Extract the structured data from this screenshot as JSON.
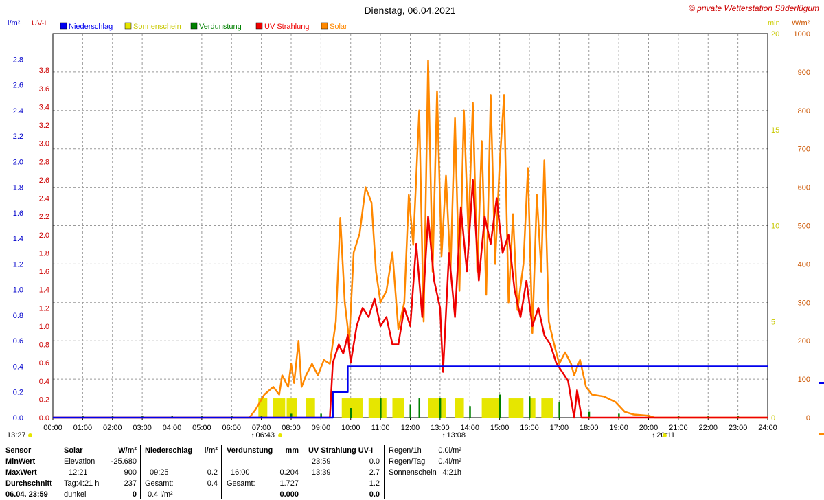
{
  "header": {
    "title": "Dienstag, 06.04.2021",
    "copyright": "© private Wetterstation Süderlügum",
    "unit_rain": "l/m²",
    "unit_uv": "UV-I",
    "unit_min": "min",
    "unit_wm2": "W/m²"
  },
  "legend": [
    {
      "label": "Niederschlag",
      "color": "#0000ee"
    },
    {
      "label": "Sonnenschein",
      "color": "#e6e600"
    },
    {
      "label": "Verdunstung",
      "color": "#008000"
    },
    {
      "label": "UV Strahlung",
      "color": "#ee0000"
    },
    {
      "label": "Solar",
      "color": "#ff8800"
    }
  ],
  "chart_data": {
    "type": "line",
    "x_ticks": [
      "00:00",
      "01:00",
      "02:00",
      "03:00",
      "04:00",
      "05:00",
      "06:00",
      "07:00",
      "08:00",
      "09:00",
      "10:00",
      "11:00",
      "12:00",
      "13:00",
      "14:00",
      "15:00",
      "16:00",
      "17:00",
      "18:00",
      "19:00",
      "20:00",
      "21:00",
      "22:00",
      "23:00",
      "24:00"
    ],
    "xlim": [
      0,
      24
    ],
    "y_rain_ticks": [
      "0.0",
      "0.2",
      "0.4",
      "0.6",
      "0.8",
      "1.0",
      "1.2",
      "1.4",
      "1.6",
      "1.8",
      "2.0",
      "2.2",
      "2.4",
      "2.6",
      "2.8"
    ],
    "y_uv_ticks": [
      "0.0",
      "0.2",
      "0.4",
      "0.6",
      "0.8",
      "1.0",
      "1.2",
      "1.4",
      "1.6",
      "1.8",
      "2.0",
      "2.2",
      "2.4",
      "2.6",
      "2.8",
      "3.0",
      "3.2",
      "3.4",
      "3.6",
      "3.8"
    ],
    "y_min_ticks": [
      "0",
      "5",
      "10",
      "15",
      "20"
    ],
    "y_wm2_ticks": [
      "0",
      "100",
      "200",
      "300",
      "400",
      "500",
      "600",
      "700",
      "800",
      "900",
      "1000"
    ],
    "grid": true,
    "markers": [
      {
        "label": "13:27",
        "pos": "left"
      },
      {
        "label": "06:43",
        "pos": "sunrise"
      },
      {
        "label": "13:08",
        "pos": "noon"
      },
      {
        "label": "20:11",
        "pos": "sunset"
      }
    ],
    "series": [
      {
        "name": "Niederschlag",
        "color": "#0000ee",
        "axis": "rain",
        "points": [
          [
            0,
            0
          ],
          [
            9.4,
            0
          ],
          [
            9.4,
            0.2
          ],
          [
            9.9,
            0.2
          ],
          [
            9.9,
            0.4
          ],
          [
            24,
            0.4
          ]
        ]
      },
      {
        "name": "Solar",
        "color": "#ff8800",
        "axis": "wm2",
        "points": [
          [
            0,
            0
          ],
          [
            6.6,
            0
          ],
          [
            6.8,
            20
          ],
          [
            7.1,
            60
          ],
          [
            7.4,
            80
          ],
          [
            7.6,
            60
          ],
          [
            7.7,
            110
          ],
          [
            7.9,
            80
          ],
          [
            8.0,
            140
          ],
          [
            8.1,
            90
          ],
          [
            8.25,
            200
          ],
          [
            8.35,
            80
          ],
          [
            8.5,
            110
          ],
          [
            8.7,
            140
          ],
          [
            8.9,
            110
          ],
          [
            9.1,
            150
          ],
          [
            9.3,
            140
          ],
          [
            9.5,
            250
          ],
          [
            9.65,
            520
          ],
          [
            9.8,
            300
          ],
          [
            9.95,
            200
          ],
          [
            10.1,
            430
          ],
          [
            10.3,
            480
          ],
          [
            10.5,
            600
          ],
          [
            10.7,
            560
          ],
          [
            10.85,
            380
          ],
          [
            11.0,
            300
          ],
          [
            11.2,
            330
          ],
          [
            11.4,
            430
          ],
          [
            11.6,
            230
          ],
          [
            11.8,
            300
          ],
          [
            11.95,
            580
          ],
          [
            12.1,
            450
          ],
          [
            12.3,
            800
          ],
          [
            12.45,
            250
          ],
          [
            12.6,
            930
          ],
          [
            12.75,
            380
          ],
          [
            12.9,
            850
          ],
          [
            13.05,
            420
          ],
          [
            13.2,
            630
          ],
          [
            13.35,
            380
          ],
          [
            13.5,
            780
          ],
          [
            13.65,
            330
          ],
          [
            13.8,
            800
          ],
          [
            13.95,
            480
          ],
          [
            14.1,
            820
          ],
          [
            14.25,
            380
          ],
          [
            14.4,
            720
          ],
          [
            14.55,
            320
          ],
          [
            14.7,
            840
          ],
          [
            14.85,
            400
          ],
          [
            15.0,
            660
          ],
          [
            15.15,
            840
          ],
          [
            15.3,
            300
          ],
          [
            15.45,
            530
          ],
          [
            15.6,
            280
          ],
          [
            15.8,
            400
          ],
          [
            15.95,
            650
          ],
          [
            16.1,
            220
          ],
          [
            16.25,
            580
          ],
          [
            16.4,
            380
          ],
          [
            16.5,
            670
          ],
          [
            16.65,
            250
          ],
          [
            16.8,
            200
          ],
          [
            17.0,
            140
          ],
          [
            17.2,
            170
          ],
          [
            17.4,
            140
          ],
          [
            17.5,
            110
          ],
          [
            17.7,
            150
          ],
          [
            17.9,
            80
          ],
          [
            18.1,
            60
          ],
          [
            18.5,
            55
          ],
          [
            18.9,
            40
          ],
          [
            19.2,
            15
          ],
          [
            19.5,
            8
          ],
          [
            20.0,
            5
          ],
          [
            20.2,
            0
          ],
          [
            24,
            0
          ]
        ]
      },
      {
        "name": "UV Strahlung",
        "color": "#ee0000",
        "axis": "uv",
        "points": [
          [
            0,
            0
          ],
          [
            9.3,
            0
          ],
          [
            9.4,
            0.6
          ],
          [
            9.6,
            0.8
          ],
          [
            9.75,
            0.7
          ],
          [
            9.9,
            0.9
          ],
          [
            10.0,
            0.6
          ],
          [
            10.2,
            1.0
          ],
          [
            10.4,
            1.2
          ],
          [
            10.6,
            1.1
          ],
          [
            10.8,
            1.3
          ],
          [
            11.0,
            1.0
          ],
          [
            11.2,
            1.1
          ],
          [
            11.4,
            0.8
          ],
          [
            11.6,
            0.8
          ],
          [
            11.8,
            1.2
          ],
          [
            12.0,
            1.0
          ],
          [
            12.2,
            1.9
          ],
          [
            12.4,
            1.1
          ],
          [
            12.6,
            2.2
          ],
          [
            12.8,
            1.5
          ],
          [
            13.0,
            1.2
          ],
          [
            13.1,
            0.5
          ],
          [
            13.3,
            1.8
          ],
          [
            13.5,
            1.1
          ],
          [
            13.7,
            2.3
          ],
          [
            13.9,
            1.6
          ],
          [
            14.1,
            2.6
          ],
          [
            14.3,
            1.5
          ],
          [
            14.5,
            2.2
          ],
          [
            14.7,
            1.9
          ],
          [
            14.9,
            2.4
          ],
          [
            15.1,
            1.8
          ],
          [
            15.3,
            2.0
          ],
          [
            15.5,
            1.4
          ],
          [
            15.7,
            1.1
          ],
          [
            15.9,
            1.5
          ],
          [
            16.1,
            1.0
          ],
          [
            16.3,
            1.2
          ],
          [
            16.5,
            0.9
          ],
          [
            16.7,
            0.8
          ],
          [
            16.9,
            0.6
          ],
          [
            17.1,
            0.5
          ],
          [
            17.3,
            0.4
          ],
          [
            17.5,
            0.0
          ],
          [
            17.6,
            0.3
          ],
          [
            17.75,
            0.0
          ],
          [
            24,
            0
          ]
        ]
      },
      {
        "name": "Sonnenschein",
        "color": "#e6e600",
        "axis": "min",
        "bars": [
          [
            6.9,
            7.2
          ],
          [
            7.4,
            7.8
          ],
          [
            7.85,
            8.2
          ],
          [
            8.5,
            8.8
          ],
          [
            9.7,
            10.4
          ],
          [
            10.6,
            11.2
          ],
          [
            11.4,
            11.8
          ],
          [
            12.6,
            13.2
          ],
          [
            13.5,
            13.8
          ],
          [
            14.4,
            15.0
          ],
          [
            15.3,
            15.8
          ],
          [
            16.0,
            16.2
          ],
          [
            16.4,
            16.8
          ]
        ],
        "bar_value": 1
      },
      {
        "name": "Verdunstung",
        "color": "#008000",
        "axis": "min",
        "spikes": [
          [
            1,
            0.1
          ],
          [
            2,
            0.1
          ],
          [
            3,
            0.1
          ],
          [
            4,
            0.1
          ],
          [
            5,
            0.1
          ],
          [
            6,
            0.1
          ],
          [
            7,
            0.1
          ],
          [
            8,
            0.2
          ],
          [
            9,
            0.2
          ],
          [
            10,
            0.5
          ],
          [
            11,
            1.0
          ],
          [
            12,
            0.7
          ],
          [
            12.3,
            1.0
          ],
          [
            13,
            1.0
          ],
          [
            14,
            0.6
          ],
          [
            15,
            1.2
          ],
          [
            16,
            1.1
          ],
          [
            17,
            0.8
          ],
          [
            18,
            0.3
          ],
          [
            19,
            0.2
          ],
          [
            20,
            0.1
          ],
          [
            21,
            0.1
          ],
          [
            22,
            0.1
          ],
          [
            23,
            0.1
          ]
        ]
      }
    ]
  },
  "table": {
    "sensor": {
      "head": "Sensor",
      "rows": [
        "MinWert",
        "MaxWert",
        "Durchschnitt",
        "06.04. 23:59"
      ]
    },
    "solar": {
      "head": "Solar",
      "unit": "W/m²",
      "rows": [
        [
          "Elevation",
          "-25.680"
        ],
        [
          "12:21",
          "900"
        ],
        [
          "Tag:4:21 h",
          "237"
        ],
        [
          "dunkel",
          "0"
        ]
      ]
    },
    "rain": {
      "head": "Niederschlag",
      "unit": "l/m²",
      "rows": [
        [
          "",
          ""
        ],
        [
          "09:25",
          "0.2"
        ],
        [
          "Gesamt:",
          "0.4"
        ],
        [
          "0.4 l/m²",
          ""
        ]
      ]
    },
    "evap": {
      "head": "Verdunstung",
      "unit": "mm",
      "rows": [
        [
          "",
          ""
        ],
        [
          "16:00",
          "0.204"
        ],
        [
          "Gesamt:",
          "1.727"
        ],
        [
          "",
          "0.000"
        ]
      ]
    },
    "uv": {
      "head": "UV Strahlung UV-I",
      "rows": [
        [
          "23:59",
          "0.0"
        ],
        [
          "13:39",
          "2.7"
        ],
        [
          "",
          "1.2"
        ],
        [
          "",
          "0.0"
        ]
      ]
    },
    "summary": {
      "rows": [
        [
          "Regen/1h",
          "0.0l/m²"
        ],
        [
          "Regen/Tag",
          "0.4l/m²"
        ],
        [
          "Sonnenschein",
          "4:21h"
        ]
      ]
    }
  }
}
